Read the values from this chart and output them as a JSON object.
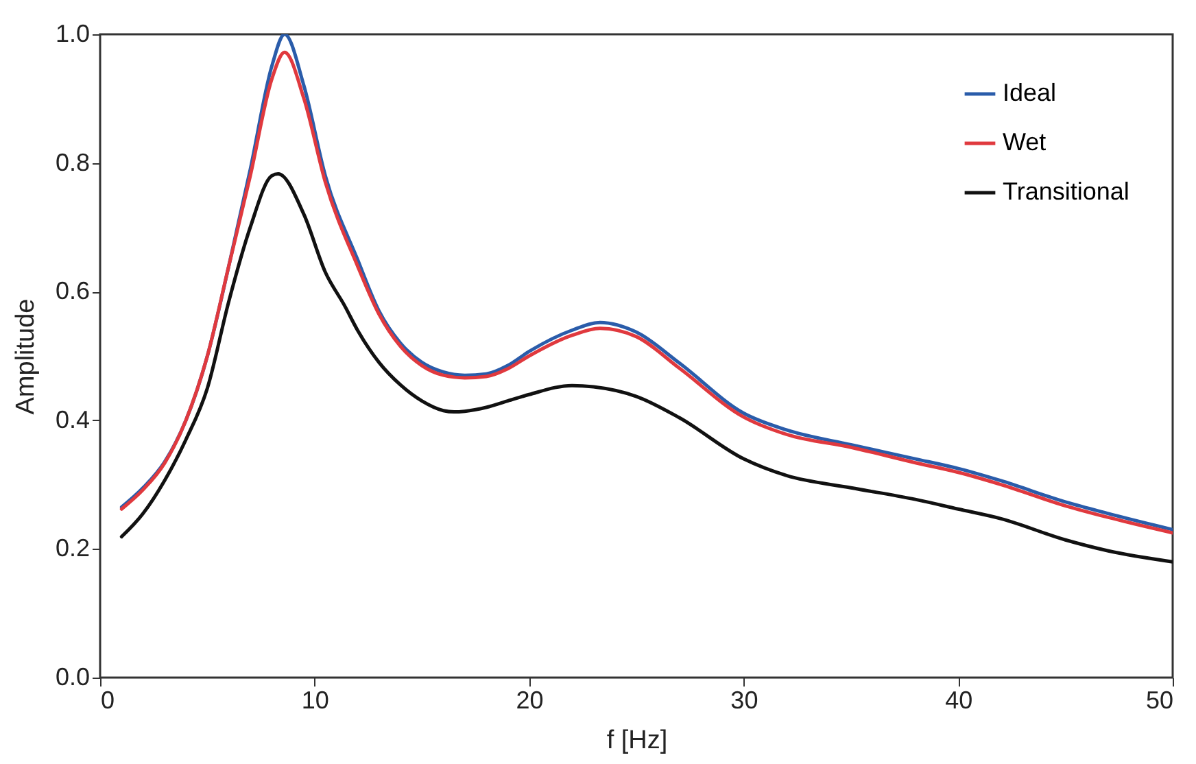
{
  "chart_data": {
    "type": "line",
    "xlabel": "f [Hz]",
    "ylabel": "Amplitude",
    "xlim": [
      0,
      50
    ],
    "xticks": [
      0,
      10,
      20,
      30,
      40,
      50
    ],
    "ylim": [
      0,
      1
    ],
    "yticks": [
      {
        "value": 0,
        "label": "0.0"
      },
      {
        "value": 0.2,
        "label": "0.2"
      },
      {
        "value": 0.4,
        "label": "0.4"
      },
      {
        "value": 0.6,
        "label": "0.6"
      },
      {
        "value": 0.8,
        "label": "0.8"
      },
      {
        "value": 1,
        "label": "1.0"
      }
    ],
    "legend": "top right",
    "grid": false,
    "marker": "none",
    "line_style": "solid",
    "series": [
      {
        "name": "Ideal",
        "color": "#2a5caa",
        "x": [
          1,
          2,
          3,
          4,
          5,
          6,
          7,
          8,
          8.6,
          9.5,
          10.5,
          12,
          13,
          14,
          15,
          16,
          17,
          18,
          19,
          20,
          22,
          23.3,
          25,
          27,
          30,
          32,
          35,
          38,
          40,
          42,
          45,
          47,
          50
        ],
        "values": [
          0.265,
          0.295,
          0.335,
          0.4,
          0.5,
          0.64,
          0.79,
          0.95,
          1.0,
          0.92,
          0.78,
          0.65,
          0.57,
          0.52,
          0.49,
          0.475,
          0.47,
          0.472,
          0.485,
          0.507,
          0.54,
          0.552,
          0.537,
          0.489,
          0.411,
          0.385,
          0.362,
          0.34,
          0.325,
          0.306,
          0.273,
          0.255,
          0.23
        ]
      },
      {
        "name": "Wet",
        "color": "#e0393e",
        "x": [
          1,
          2,
          3,
          4,
          5,
          6,
          7,
          8,
          8.6,
          9.5,
          10.5,
          12,
          13,
          14,
          15,
          16,
          17,
          18,
          19,
          20,
          22,
          23.3,
          25,
          27,
          30,
          32,
          35,
          38,
          40,
          42,
          45,
          47,
          50
        ],
        "values": [
          0.262,
          0.292,
          0.333,
          0.4,
          0.5,
          0.64,
          0.78,
          0.93,
          0.972,
          0.9,
          0.77,
          0.64,
          0.565,
          0.515,
          0.485,
          0.47,
          0.466,
          0.468,
          0.48,
          0.5,
          0.532,
          0.543,
          0.53,
          0.481,
          0.405,
          0.378,
          0.358,
          0.334,
          0.319,
          0.3,
          0.267,
          0.249,
          0.225
        ]
      },
      {
        "name": "Transitional",
        "color": "#111111",
        "x": [
          1,
          2,
          3,
          4,
          5,
          6,
          7,
          8,
          8.3,
          9.5,
          10.5,
          11.4,
          12,
          13,
          14,
          15,
          16,
          16.5,
          17,
          18,
          19,
          20,
          22,
          23,
          25,
          27,
          30,
          32,
          35,
          38,
          40,
          42,
          45,
          47,
          50
        ],
        "values": [
          0.219,
          0.255,
          0.306,
          0.37,
          0.45,
          0.585,
          0.7,
          0.78,
          0.783,
          0.72,
          0.63,
          0.578,
          0.54,
          0.49,
          0.455,
          0.43,
          0.415,
          0.413,
          0.414,
          0.42,
          0.43,
          0.44,
          0.454,
          0.452,
          0.437,
          0.404,
          0.34,
          0.314,
          0.295,
          0.277,
          0.262,
          0.247,
          0.214,
          0.197,
          0.18
        ]
      }
    ]
  }
}
